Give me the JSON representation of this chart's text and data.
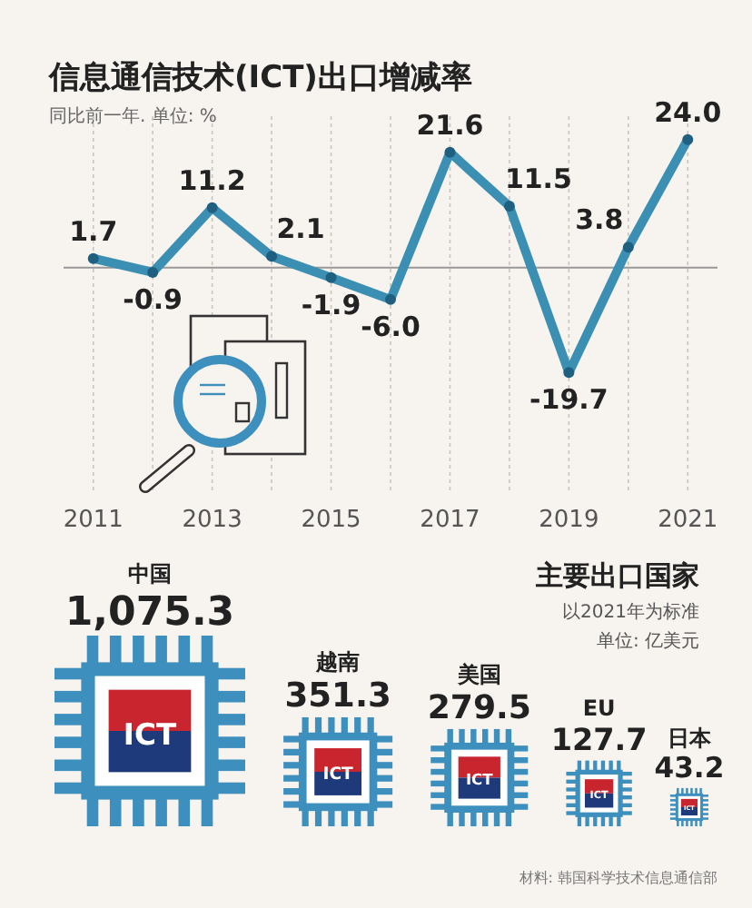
{
  "chart_data": [
    {
      "type": "line",
      "title": "信息通信技术(ICT)出口增减率",
      "subtitle": "同比前一年. 单位: %",
      "x": [
        2011,
        2012,
        2013,
        2014,
        2015,
        2016,
        2017,
        2018,
        2019,
        2020,
        2021
      ],
      "series": [
        {
          "color": "#3a8fb3",
          "values": [
            1.7,
            -0.9,
            11.2,
            2.1,
            -1.9,
            -6.0,
            21.6,
            11.5,
            -19.7,
            3.8,
            24.0
          ],
          "value_labels": [
            "1.7",
            "-0.9",
            "11.2",
            "2.1",
            "-1.9",
            "-6.0",
            "21.6",
            "11.5",
            "-19.7",
            "3.8",
            "24.0"
          ]
        }
      ],
      "xlim": [
        2010.5,
        2021.5
      ],
      "xticks": [
        2011,
        {
          "value": 2012,
          "label": null
        },
        2013,
        {
          "value": 2014,
          "label": null
        },
        2015,
        {
          "value": 2016,
          "label": null
        },
        2017,
        {
          "value": 2018,
          "label": null
        },
        2019,
        {
          "value": 2020,
          "label": null
        },
        2021
      ],
      "grid": "x",
      "marker": "circle",
      "tick_labels": "x",
      "ref_lines": [
        {
          "axis": "y",
          "value": 0,
          "color": "#999999"
        }
      ]
    },
    {
      "type": "other",
      "title": "主要出口国家",
      "categories": [
        "中国",
        "越南",
        "美国",
        "EU",
        "日本"
      ],
      "values": [
        1075.3,
        351.3,
        279.5,
        127.7,
        43.2
      ],
      "value_labels": [
        "1,075.3",
        "351.3",
        "279.5",
        "127.7",
        "43.2"
      ],
      "colors": [
        "#3d8fbd",
        "#3d8fbd",
        "#3d8fbd",
        "#3d8fbd",
        "#3d8fbd"
      ],
      "annotations": [
        "ICT",
        "以2021年为标准",
        "单位: 亿美元",
        "材料: 韩国科学技术信息通信部"
      ]
    }
  ]
}
